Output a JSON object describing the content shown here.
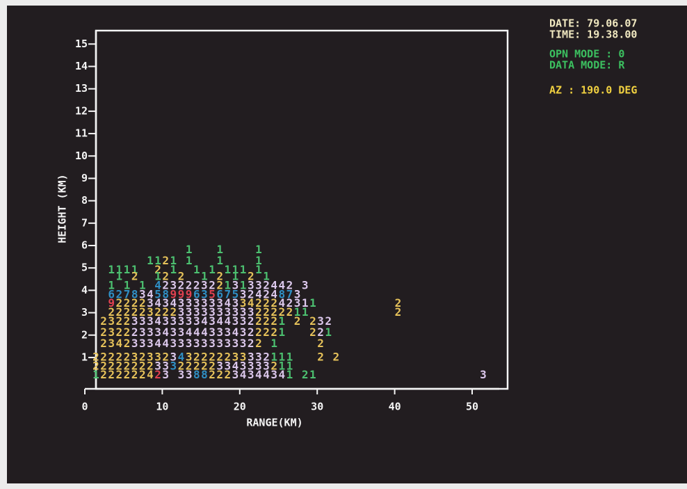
{
  "chart_data": {
    "type": "rhi",
    "header": [
      "DATE: 79.06.07",
      "TIME: 19.38.00",
      "OPN MODE : 0",
      "DATA MODE: R",
      "AZ : 190.0 DEG"
    ],
    "xlabel": "RANGE(KM)",
    "ylabel": "HEIGHT (KM)",
    "xlim": [
      0,
      53.5
    ],
    "ylim": [
      -0.4,
      15.6
    ],
    "xticks": [
      0,
      10,
      20,
      30,
      40,
      50
    ],
    "yticks": [
      1,
      2,
      3,
      4,
      5,
      6,
      7,
      8,
      9,
      10,
      11,
      12,
      13,
      14,
      15
    ],
    "cells": [
      {
        "x": 13,
        "y": 5.8,
        "text": "1",
        "color": "#4cc070"
      },
      {
        "x": 17,
        "y": 5.8,
        "text": "1",
        "color": "#4cc070"
      },
      {
        "x": 22,
        "y": 5.8,
        "text": "1",
        "color": "#4cc070"
      },
      {
        "x": 8,
        "y": 5.3,
        "text": "11",
        "color": "#4cc070"
      },
      {
        "x": 10,
        "y": 5.3,
        "text": "2",
        "color": "#e6c25a"
      },
      {
        "x": 11,
        "y": 5.3,
        "text": "1",
        "color": "#4cc070"
      },
      {
        "x": 13,
        "y": 5.3,
        "text": "1",
        "color": "#4cc070"
      },
      {
        "x": 17,
        "y": 5.3,
        "text": "1",
        "color": "#4cc070"
      },
      {
        "x": 22,
        "y": 5.3,
        "text": "1",
        "color": "#4cc070"
      },
      {
        "x": 3,
        "y": 4.9,
        "text": "1111",
        "color": "#4cc070"
      },
      {
        "x": 9,
        "y": 4.9,
        "text": "2",
        "color": "#e6c25a"
      },
      {
        "x": 11,
        "y": 4.9,
        "text": "1",
        "color": "#4cc070"
      },
      {
        "x": 14,
        "y": 4.9,
        "text": "1",
        "color": "#4cc070"
      },
      {
        "x": 16,
        "y": 4.9,
        "text": "1",
        "color": "#4cc070"
      },
      {
        "x": 18,
        "y": 4.9,
        "text": "111",
        "color": "#4cc070"
      },
      {
        "x": 22,
        "y": 4.9,
        "text": "1",
        "color": "#4cc070"
      },
      {
        "x": 4,
        "y": 4.6,
        "text": "1",
        "color": "#4cc070"
      },
      {
        "x": 6,
        "y": 4.6,
        "text": "2",
        "color": "#e6c25a"
      },
      {
        "x": 9,
        "y": 4.6,
        "text": "1",
        "color": "#4cc070"
      },
      {
        "x": 10,
        "y": 4.6,
        "text": "2",
        "color": "#e6c25a"
      },
      {
        "x": 12,
        "y": 4.6,
        "text": "2",
        "color": "#e6c25a"
      },
      {
        "x": 15,
        "y": 4.6,
        "text": "1",
        "color": "#4cc070"
      },
      {
        "x": 17,
        "y": 4.6,
        "text": "2",
        "color": "#e6c25a"
      },
      {
        "x": 19,
        "y": 4.6,
        "text": "1",
        "color": "#4cc070"
      },
      {
        "x": 21,
        "y": 4.6,
        "text": "2",
        "color": "#e6c25a"
      },
      {
        "x": 23,
        "y": 4.6,
        "text": "1",
        "color": "#4cc070"
      },
      {
        "x": 3,
        "y": 4.2,
        "text": "1",
        "color": "#4cc070"
      },
      {
        "x": 5,
        "y": 4.2,
        "text": "1",
        "color": "#4cc070"
      },
      {
        "x": 7,
        "y": 4.2,
        "text": "1",
        "color": "#4cc070"
      },
      {
        "x": 9,
        "y": 4.2,
        "text": "4",
        "color": "#2f8fc4"
      },
      {
        "x": 10,
        "y": 4.2,
        "text": "2322232",
        "color": "#dcc8ec"
      },
      {
        "x": 17,
        "y": 4.2,
        "text": "2",
        "color": "#e6c25a"
      },
      {
        "x": 18,
        "y": 4.2,
        "text": "1",
        "color": "#4cc070"
      },
      {
        "x": 19,
        "y": 4.2,
        "text": "3",
        "color": "#dcc8ec"
      },
      {
        "x": 20,
        "y": 4.2,
        "text": "1",
        "color": "#4cc070"
      },
      {
        "x": 21,
        "y": 4.2,
        "text": "332442",
        "color": "#dcc8ec"
      },
      {
        "x": 28,
        "y": 4.2,
        "text": "3",
        "color": "#dcc8ec"
      },
      {
        "x": 3,
        "y": 3.8,
        "text": "62",
        "color": "#2f8fc4"
      },
      {
        "x": 5,
        "y": 3.8,
        "text": "78",
        "color": "#2f8fc4"
      },
      {
        "x": 7,
        "y": 3.8,
        "text": "34",
        "color": "#dcc8ec"
      },
      {
        "x": 9,
        "y": 3.8,
        "text": "58",
        "color": "#2f8fc4"
      },
      {
        "x": 11,
        "y": 3.8,
        "text": "999",
        "color": "#e04050"
      },
      {
        "x": 14,
        "y": 3.8,
        "text": "63",
        "color": "#2f8fc4"
      },
      {
        "x": 16,
        "y": 3.8,
        "text": "5",
        "color": "#e04050"
      },
      {
        "x": 17,
        "y": 3.8,
        "text": "6",
        "color": "#2f8fc4"
      },
      {
        "x": 18,
        "y": 3.8,
        "text": "75",
        "color": "#2f8fc4"
      },
      {
        "x": 20,
        "y": 3.8,
        "text": "32424",
        "color": "#dcc8ec"
      },
      {
        "x": 25,
        "y": 3.8,
        "text": "87",
        "color": "#2f8fc4"
      },
      {
        "x": 27,
        "y": 3.8,
        "text": "3",
        "color": "#dcc8ec"
      },
      {
        "x": 3,
        "y": 3.4,
        "text": "9",
        "color": "#e04050"
      },
      {
        "x": 4,
        "y": 3.4,
        "text": "2222",
        "color": "#e6c25a"
      },
      {
        "x": 8,
        "y": 3.4,
        "text": "343433333343",
        "color": "#dcc8ec"
      },
      {
        "x": 20,
        "y": 3.4,
        "text": "34222",
        "color": "#e6c25a"
      },
      {
        "x": 25,
        "y": 3.4,
        "text": "4231",
        "color": "#dcc8ec"
      },
      {
        "x": 29,
        "y": 3.4,
        "text": "1",
        "color": "#4cc070"
      },
      {
        "x": 40,
        "y": 3.4,
        "text": "2",
        "color": "#e6c25a"
      },
      {
        "x": 3,
        "y": 3.0,
        "text": "22222",
        "color": "#e6c25a"
      },
      {
        "x": 8,
        "y": 3.0,
        "text": "3222",
        "color": "#e6c25a"
      },
      {
        "x": 12,
        "y": 3.0,
        "text": "3333333333",
        "color": "#dcc8ec"
      },
      {
        "x": 22,
        "y": 3.0,
        "text": "22222",
        "color": "#e6c25a"
      },
      {
        "x": 27,
        "y": 3.0,
        "text": "1",
        "color": "#4cc070"
      },
      {
        "x": 28,
        "y": 3.0,
        "text": "1",
        "color": "#4cc070"
      },
      {
        "x": 40,
        "y": 3.0,
        "text": "2",
        "color": "#e6c25a"
      },
      {
        "x": 2,
        "y": 2.6,
        "text": "2322",
        "color": "#e6c25a"
      },
      {
        "x": 6,
        "y": 2.6,
        "text": "333433",
        "color": "#dcc8ec"
      },
      {
        "x": 12,
        "y": 2.6,
        "text": "3334344332",
        "color": "#dcc8ec"
      },
      {
        "x": 22,
        "y": 2.6,
        "text": "222",
        "color": "#e6c25a"
      },
      {
        "x": 25,
        "y": 2.6,
        "text": "1",
        "color": "#4cc070"
      },
      {
        "x": 27,
        "y": 2.6,
        "text": "2",
        "color": "#e6c25a"
      },
      {
        "x": 29,
        "y": 2.6,
        "text": "2",
        "color": "#e6c25a"
      },
      {
        "x": 30,
        "y": 2.6,
        "text": "32",
        "color": "#dcc8ec"
      },
      {
        "x": 2,
        "y": 2.1,
        "text": "2322",
        "color": "#e6c25a"
      },
      {
        "x": 6,
        "y": 2.1,
        "text": "23334334",
        "color": "#dcc8ec"
      },
      {
        "x": 14,
        "y": 2.1,
        "text": "44333432",
        "color": "#dcc8ec"
      },
      {
        "x": 22,
        "y": 2.1,
        "text": "222",
        "color": "#e6c25a"
      },
      {
        "x": 25,
        "y": 2.1,
        "text": "1",
        "color": "#4cc070"
      },
      {
        "x": 29,
        "y": 2.1,
        "text": "2",
        "color": "#e6c25a"
      },
      {
        "x": 30,
        "y": 2.1,
        "text": "2",
        "color": "#dcc8ec"
      },
      {
        "x": 31,
        "y": 2.1,
        "text": "1",
        "color": "#4cc070"
      },
      {
        "x": 2,
        "y": 1.6,
        "text": "234",
        "color": "#e6c25a"
      },
      {
        "x": 5,
        "y": 1.6,
        "text": "2",
        "color": "#e6c25a"
      },
      {
        "x": 6,
        "y": 1.6,
        "text": "3334",
        "color": "#dcc8ec"
      },
      {
        "x": 10,
        "y": 1.6,
        "text": "4333333",
        "color": "#dcc8ec"
      },
      {
        "x": 17,
        "y": 1.6,
        "text": "33332",
        "color": "#dcc8ec"
      },
      {
        "x": 22,
        "y": 1.6,
        "text": "2",
        "color": "#e6c25a"
      },
      {
        "x": 24,
        "y": 1.6,
        "text": "1",
        "color": "#4cc070"
      },
      {
        "x": 30,
        "y": 1.6,
        "text": "2",
        "color": "#e6c25a"
      },
      {
        "x": 1,
        "y": 1.0,
        "text": "2222232332",
        "color": "#e6c25a"
      },
      {
        "x": 11,
        "y": 1.0,
        "text": "3",
        "color": "#dcc8ec"
      },
      {
        "x": 12,
        "y": 1.0,
        "text": "4",
        "color": "#2f8fc4"
      },
      {
        "x": 13,
        "y": 1.0,
        "text": "32222233",
        "color": "#e6c25a"
      },
      {
        "x": 21,
        "y": 1.0,
        "text": "332",
        "color": "#dcc8ec"
      },
      {
        "x": 24,
        "y": 1.0,
        "text": "11",
        "color": "#4cc070"
      },
      {
        "x": 26,
        "y": 1.0,
        "text": "1",
        "color": "#4cc070"
      },
      {
        "x": 30,
        "y": 1.0,
        "text": "2",
        "color": "#e6c25a"
      },
      {
        "x": 32,
        "y": 1.0,
        "text": "2",
        "color": "#e6c25a"
      },
      {
        "x": 1,
        "y": 0.6,
        "text": "2222222",
        "color": "#e6c25a"
      },
      {
        "x": 8,
        "y": 0.6,
        "text": "2",
        "color": "#e6c25a"
      },
      {
        "x": 9,
        "y": 0.6,
        "text": "33",
        "color": "#dcc8ec"
      },
      {
        "x": 11,
        "y": 0.6,
        "text": "3",
        "color": "#2f8fc4"
      },
      {
        "x": 12,
        "y": 0.6,
        "text": "22222",
        "color": "#e6c25a"
      },
      {
        "x": 17,
        "y": 0.6,
        "text": "3343333",
        "color": "#dcc8ec"
      },
      {
        "x": 24,
        "y": 0.6,
        "text": "2",
        "color": "#e6c25a"
      },
      {
        "x": 25,
        "y": 0.6,
        "text": "1",
        "color": "#4cc070"
      },
      {
        "x": 26,
        "y": 0.6,
        "text": "1",
        "color": "#4cc070"
      },
      {
        "x": 1,
        "y": 0.2,
        "text": "1",
        "color": "#4cc070"
      },
      {
        "x": 2,
        "y": 0.2,
        "text": "22222",
        "color": "#e6c25a"
      },
      {
        "x": 7,
        "y": 0.2,
        "text": "24",
        "color": "#e6c25a"
      },
      {
        "x": 9,
        "y": 0.2,
        "text": "2",
        "color": "#e04050"
      },
      {
        "x": 10,
        "y": 0.2,
        "text": "3",
        "color": "#dcc8ec"
      },
      {
        "x": 12,
        "y": 0.2,
        "text": "3",
        "color": "#dcc8ec"
      },
      {
        "x": 13,
        "y": 0.2,
        "text": "3",
        "color": "#dcc8ec"
      },
      {
        "x": 14,
        "y": 0.2,
        "text": "88",
        "color": "#2f8fc4"
      },
      {
        "x": 16,
        "y": 0.2,
        "text": "222",
        "color": "#e6c25a"
      },
      {
        "x": 19,
        "y": 0.2,
        "text": "3434",
        "color": "#dcc8ec"
      },
      {
        "x": 23,
        "y": 0.2,
        "text": "434",
        "color": "#dcc8ec"
      },
      {
        "x": 26,
        "y": 0.2,
        "text": "1",
        "color": "#4cc070"
      },
      {
        "x": 28,
        "y": 0.2,
        "text": "21",
        "color": "#4cc070"
      },
      {
        "x": 51,
        "y": 0.2,
        "text": "3",
        "color": "#dcc8ec"
      }
    ]
  }
}
